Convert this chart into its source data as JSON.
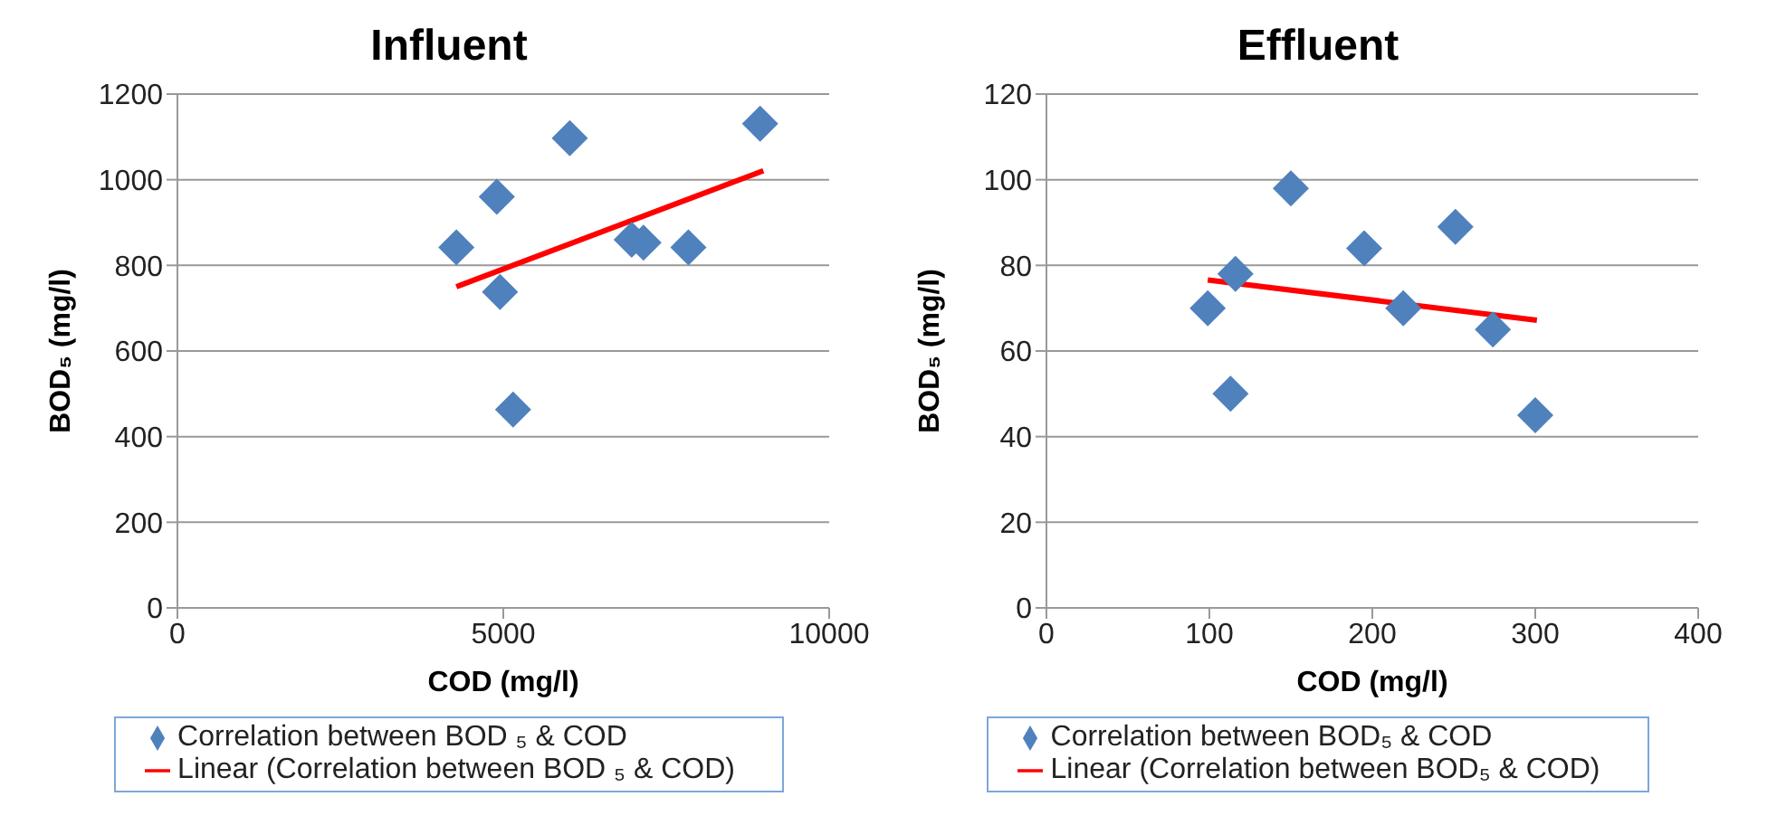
{
  "chart_data": [
    {
      "type": "scatter",
      "title": "Influent",
      "xlabel": "COD (mg/l)",
      "ylabel": "BOD₅ (mg/l)",
      "xlim": [
        0,
        10000
      ],
      "xticks": [
        0,
        5000,
        10000
      ],
      "ylim": [
        0,
        1200
      ],
      "yticks": [
        0,
        200,
        400,
        600,
        800,
        1000,
        1200
      ],
      "grid": "y",
      "legend": "bottom",
      "series": [
        {
          "name": "Correlation between BOD ₅ & COD",
          "color": "#4f81bd",
          "marker": "diamond",
          "x": [
            4280,
            4900,
            4950,
            5150,
            6020,
            6970,
            7150,
            7840,
            8940
          ],
          "values": [
            842,
            960,
            738,
            463,
            1097,
            860,
            853,
            842,
            1131
          ]
        },
        {
          "type": "line",
          "name": "Linear (Correlation between BOD ₅ & COD)",
          "color": "#ff0000",
          "marker": "none",
          "line_style": "solid",
          "x": [
            4280,
            8990
          ],
          "values": [
            750,
            1021
          ]
        }
      ]
    },
    {
      "type": "scatter",
      "title": "Effluent",
      "xlabel": "COD (mg/l)",
      "ylabel": "BOD₅ (mg/l)",
      "xlim": [
        0,
        400
      ],
      "xticks": [
        0,
        100,
        200,
        300,
        400
      ],
      "ylim": [
        0,
        120
      ],
      "yticks": [
        0,
        20,
        40,
        60,
        80,
        100,
        120
      ],
      "grid": "y",
      "legend": "bottom",
      "series": [
        {
          "name": "Correlation between BOD₅ & COD",
          "color": "#4f81bd",
          "marker": "diamond",
          "x": [
            99,
            113,
            116,
            150,
            195,
            219,
            251,
            274,
            300
          ],
          "values": [
            70,
            50,
            78,
            98,
            84,
            70,
            89,
            65,
            45
          ]
        },
        {
          "type": "line",
          "name": "Linear (Correlation between BOD₅ & COD)",
          "color": "#ff0000",
          "marker": "none",
          "line_style": "solid",
          "x": [
            99,
            301
          ],
          "values": [
            76.6,
            67.2
          ]
        }
      ]
    }
  ]
}
